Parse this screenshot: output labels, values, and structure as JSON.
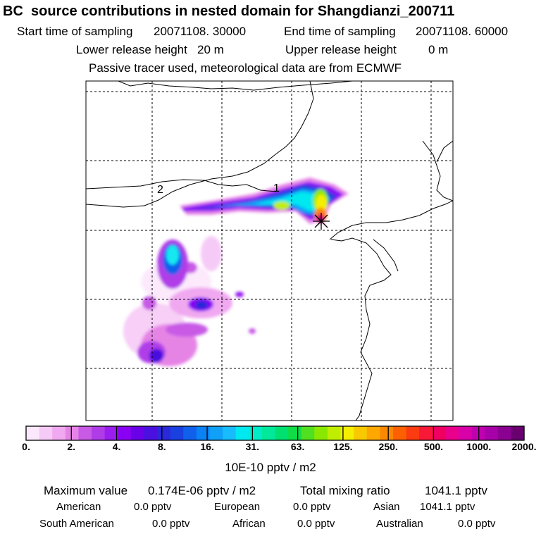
{
  "header": {
    "title": "BC  source contributions in nested domain for Shangdianzi_200711",
    "start_label": "Start time of sampling",
    "start_value": "20071108. 30000",
    "end_label": "End time of sampling",
    "end_value": "20071108. 60000",
    "lower_label": "Lower release height",
    "lower_value": "20 m",
    "upper_label": "Upper release height",
    "upper_value": "0 m",
    "tracer_note": "Passive tracer used, meteorological data are from ECMWF"
  },
  "map": {
    "markers": [
      "1",
      "2"
    ],
    "site_marker": "receptor-star"
  },
  "chart_data": {
    "type": "heatmap",
    "title": "BC  source contributions in nested domain for Shangdianzi_200711",
    "colorbar": {
      "label": "10E-10 pptv / m2",
      "tick_labels": [
        "0.",
        "2.",
        "4.",
        "8.",
        "16.",
        "31.",
        "63.",
        "125.",
        "250.",
        "500.",
        "1000.",
        "2000."
      ],
      "colors": [
        "#fce8fc",
        "#f6caf6",
        "#f0a8f0",
        "#e684e6",
        "#c85ae6",
        "#b03ce8",
        "#9a1ef0",
        "#8a00f5",
        "#6a00e8",
        "#4a10e0",
        "#2a28d8",
        "#1a40e0",
        "#1060ec",
        "#0a82f4",
        "#10a0f8",
        "#18bcfc",
        "#00e8f0",
        "#00ecc8",
        "#00e89a",
        "#00e070",
        "#10dc46",
        "#50e020",
        "#8ae800",
        "#c0ee00",
        "#f4ee00",
        "#f8c800",
        "#fca800",
        "#fc8800",
        "#fc6000",
        "#fc3c10",
        "#f81838",
        "#f00060",
        "#e8008c",
        "#d800a8",
        "#c000b0",
        "#a800a8",
        "#8a0090",
        "#6a0070"
      ]
    },
    "summary": {
      "max_label": "Maximum value",
      "max_value": "0.174E-06 pptv / m2",
      "total_label": "Total mixing ratio",
      "total_value": "1041.1 pptv"
    },
    "regions": [
      {
        "name": "American",
        "value": "0.0 pptv"
      },
      {
        "name": "European",
        "value": "0.0 pptv"
      },
      {
        "name": "Asian",
        "value": "1041.1 pptv"
      },
      {
        "name": "South American",
        "value": "0.0 pptv"
      },
      {
        "name": "African",
        "value": "0.0 pptv"
      },
      {
        "name": "Australian",
        "value": "0.0 pptv"
      }
    ]
  }
}
